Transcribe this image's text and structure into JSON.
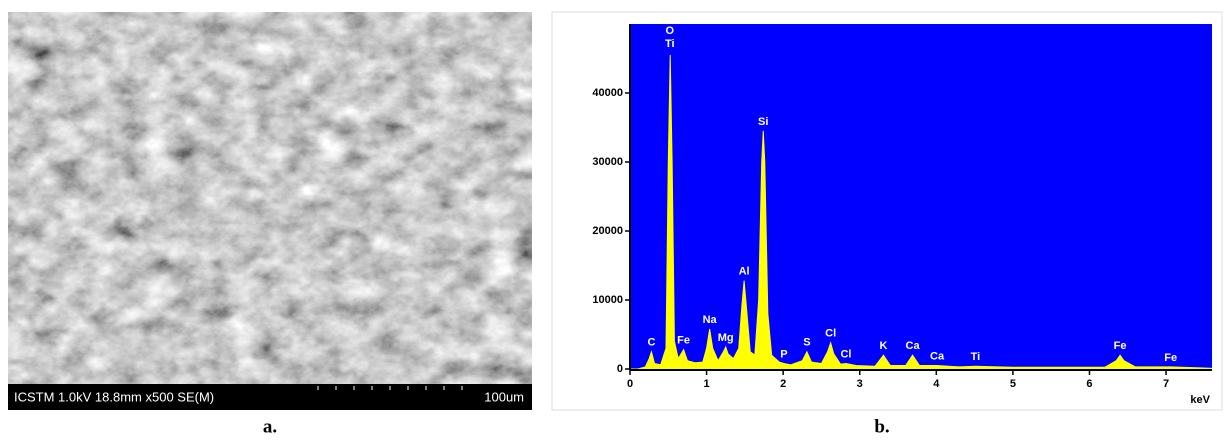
{
  "image_panel": {
    "info": "ICSTM 1.0kV 18.8mm x500 SE(M)",
    "scale": "100um",
    "caption": "a."
  },
  "chart_data": {
    "type": "area",
    "caption": "b.",
    "xlabel": "keV",
    "color": "#ffff00",
    "background": "#0000ff",
    "xlim": [
      0,
      7.6
    ],
    "ylim": [
      0,
      50000
    ],
    "xticks": [
      0,
      1,
      2,
      3,
      4,
      5,
      6,
      7
    ],
    "yticks": [
      0,
      10000,
      20000,
      30000,
      40000
    ],
    "x": [
      0.0,
      0.1,
      0.2,
      0.25,
      0.28,
      0.32,
      0.4,
      0.47,
      0.5,
      0.525,
      0.55,
      0.58,
      0.63,
      0.7,
      0.75,
      0.85,
      0.95,
      1.0,
      1.04,
      1.08,
      1.15,
      1.22,
      1.25,
      1.28,
      1.35,
      1.42,
      1.46,
      1.49,
      1.52,
      1.57,
      1.63,
      1.68,
      1.72,
      1.74,
      1.76,
      1.8,
      1.85,
      1.95,
      2.01,
      2.1,
      2.25,
      2.31,
      2.37,
      2.5,
      2.58,
      2.62,
      2.66,
      2.75,
      2.82,
      2.95,
      3.2,
      3.31,
      3.4,
      3.6,
      3.69,
      3.78,
      4.01,
      4.3,
      4.51,
      5.0,
      6.2,
      6.35,
      6.4,
      6.45,
      6.6,
      7.06,
      7.5,
      7.6
    ],
    "values": [
      0,
      0,
      300,
      1500,
      2500,
      800,
      600,
      3000,
      30000,
      45500,
      30000,
      4000,
      1500,
      2800,
      1200,
      900,
      1000,
      3000,
      5800,
      3000,
      1200,
      2500,
      3200,
      2200,
      1500,
      3000,
      9000,
      12800,
      9000,
      2500,
      2000,
      10000,
      30000,
      34500,
      30000,
      8000,
      2000,
      1000,
      800,
      600,
      1200,
      2500,
      1000,
      800,
      2500,
      3800,
      2200,
      700,
      800,
      500,
      400,
      2000,
      500,
      500,
      2000,
      500,
      500,
      300,
      400,
      250,
      250,
      1200,
      2000,
      1200,
      300,
      300,
      150,
      100
    ],
    "peaks": [
      {
        "label": "O",
        "energy": 0.52,
        "counts": 45500
      },
      {
        "label": "Ti",
        "energy": 0.52,
        "counts": 45500
      },
      {
        "label": "C",
        "energy": 0.28,
        "counts": 2500
      },
      {
        "label": "Fe",
        "energy": 0.7,
        "counts": 2800
      },
      {
        "label": "Na",
        "energy": 1.04,
        "counts": 5800
      },
      {
        "label": "Mg",
        "energy": 1.25,
        "counts": 3200
      },
      {
        "label": "Al",
        "energy": 1.49,
        "counts": 12800
      },
      {
        "label": "Si",
        "energy": 1.74,
        "counts": 34500
      },
      {
        "label": "P",
        "energy": 2.01,
        "counts": 800
      },
      {
        "label": "S",
        "energy": 2.31,
        "counts": 2500
      },
      {
        "label": "Cl",
        "energy": 2.62,
        "counts": 3800
      },
      {
        "label": "Cl",
        "energy": 2.82,
        "counts": 800
      },
      {
        "label": "K",
        "energy": 3.31,
        "counts": 2000
      },
      {
        "label": "Ca",
        "energy": 3.69,
        "counts": 2000
      },
      {
        "label": "Ca",
        "energy": 4.01,
        "counts": 500
      },
      {
        "label": "Ti",
        "energy": 4.51,
        "counts": 400
      },
      {
        "label": "Fe",
        "energy": 6.4,
        "counts": 2000
      },
      {
        "label": "Fe",
        "energy": 7.06,
        "counts": 300
      }
    ]
  }
}
